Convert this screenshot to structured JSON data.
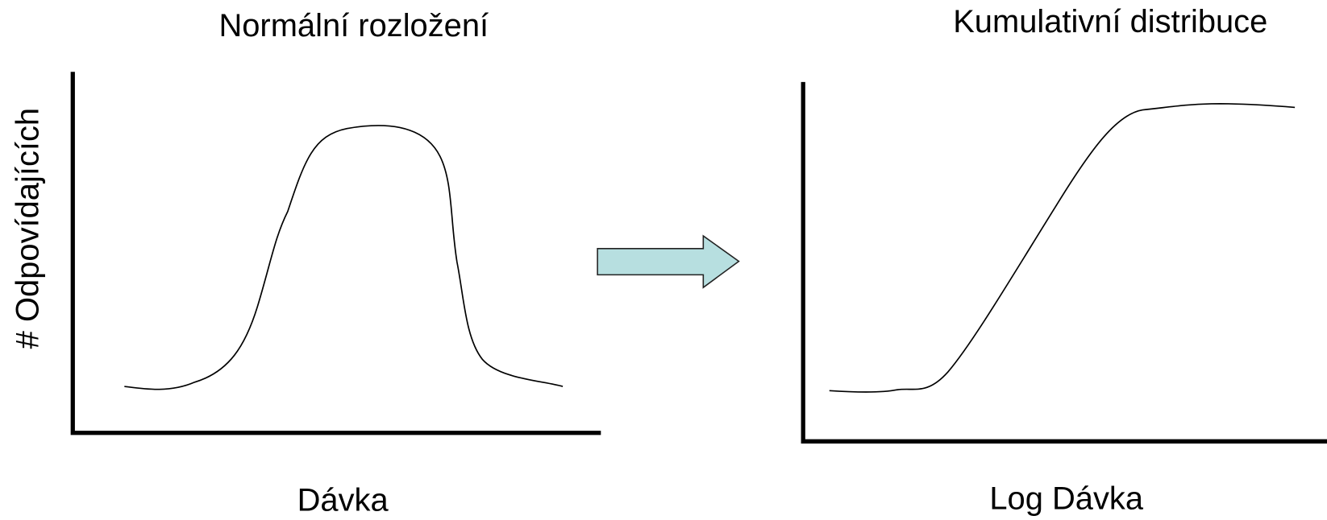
{
  "left_panel": {
    "title": "Normální rozložení",
    "y_label": "# Odpovídajících",
    "x_label": "Dávka"
  },
  "right_panel": {
    "title": "Kumulativní distribuce",
    "x_label": "Log Dávka"
  }
}
